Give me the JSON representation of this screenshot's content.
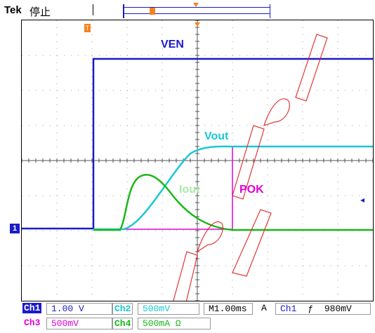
{
  "header": {
    "brand": "Tek",
    "status": "停止"
  },
  "waveforms": {
    "ven_label": "VEN",
    "vout_label": "Vout",
    "iout_label": "Iout",
    "pok_label": "POK"
  },
  "channel_markers": {
    "ground_label": "1",
    "trigger_position_label": "T"
  },
  "status_bar": {
    "row1": {
      "ch1_tag": "Ch1",
      "ch1_scale": "1.00 V",
      "ch2_tag": "Ch2",
      "ch2_scale": "500mV",
      "timebase": "M1.00ms",
      "acq_mode": "A",
      "trigger_source": "Ch1",
      "trigger_slope_icon": "rising-edge-icon",
      "trigger_level": "980mV"
    },
    "row2": {
      "ch3_tag": "Ch3",
      "ch3_scale": "500mV",
      "ch4_tag": "Ch4",
      "ch4_scale": "500mA Ω"
    }
  },
  "colors": {
    "ch1": "#1b1bc8",
    "ch2": "#19c8d4",
    "ch3": "#e000d8",
    "ch4": "#19b819",
    "trigger": "#f5821f",
    "watermark": "#e02020"
  }
}
